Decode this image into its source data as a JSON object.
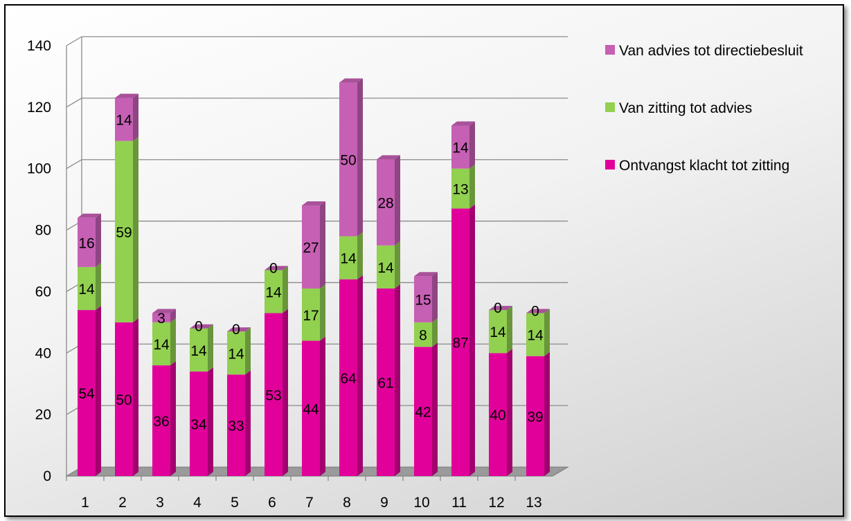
{
  "chart_data": {
    "type": "bar",
    "stacked": true,
    "three_d": true,
    "categories": [
      "1",
      "2",
      "3",
      "4",
      "5",
      "6",
      "7",
      "8",
      "9",
      "10",
      "11",
      "12",
      "13"
    ],
    "series": [
      {
        "name": "Ontvangst klacht tot zitting",
        "color": "#e2009a",
        "values": [
          54,
          50,
          36,
          34,
          33,
          53,
          44,
          64,
          61,
          42,
          87,
          40,
          39
        ]
      },
      {
        "name": "Van zitting tot advies",
        "color": "#92d050",
        "values": [
          14,
          59,
          14,
          14,
          14,
          14,
          17,
          14,
          14,
          8,
          13,
          14,
          14
        ]
      },
      {
        "name": "Van advies tot directiebesluit",
        "color": "#c660b4",
        "values": [
          16,
          14,
          3,
          0,
          0,
          0,
          27,
          50,
          28,
          15,
          14,
          0,
          0
        ]
      }
    ],
    "yticks": [
      "0",
      "20",
      "40",
      "60",
      "80",
      "100",
      "120",
      "140"
    ],
    "ylim": [
      0,
      140
    ],
    "grid": true,
    "legend_position": "right",
    "title": "",
    "xlabel": "",
    "ylabel": ""
  }
}
